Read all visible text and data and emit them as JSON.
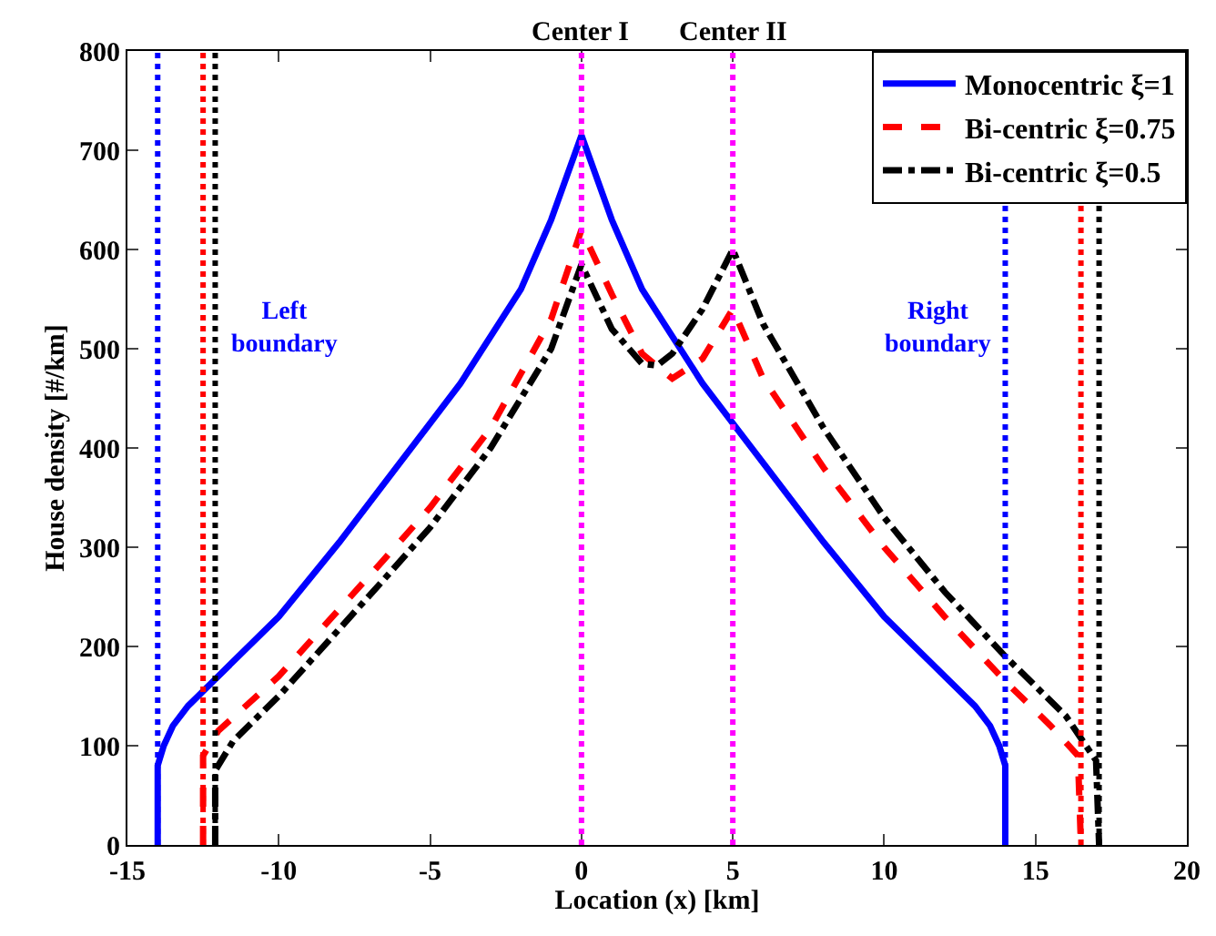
{
  "chart_data": {
    "type": "line",
    "xlabel": "Location (x) [km]",
    "ylabel": "House density [#/km]",
    "xlim": [
      -15,
      20
    ],
    "xticks": [
      -15,
      -10,
      -5,
      0,
      5,
      10,
      15,
      20
    ],
    "ylim": [
      0,
      800
    ],
    "yticks": [
      0,
      100,
      200,
      300,
      400,
      500,
      600,
      700,
      800
    ],
    "legend": "top right",
    "marker": "none",
    "series": [
      {
        "name": "Monocentric ξ=1",
        "color": "#0000ff",
        "line_style": "solid",
        "x": [
          -14,
          -14,
          -13.8,
          -13.5,
          -13,
          -12,
          -10,
          -8,
          -6,
          -5,
          -4,
          -2,
          -1,
          0,
          1,
          2,
          4,
          5,
          6,
          8,
          10,
          12,
          13,
          13.5,
          13.8,
          14,
          14
        ],
        "values": [
          0,
          80,
          100,
          120,
          140,
          170,
          230,
          305,
          385,
          425,
          465,
          560,
          630,
          715,
          630,
          560,
          465,
          425,
          385,
          305,
          230,
          170,
          140,
          120,
          100,
          80,
          0
        ]
      },
      {
        "name": "Bi-centric ξ=0.75",
        "color": "#ff0000",
        "line_style": "dashed",
        "x": [
          -12.5,
          -12.5,
          -12,
          -10,
          -6.6,
          -5,
          -3,
          -1,
          0,
          1,
          2,
          3,
          4,
          5,
          6,
          8,
          10,
          12,
          14,
          15.5,
          16.4,
          16.5
        ],
        "values": [
          0,
          90,
          115,
          170,
          285,
          340,
          420,
          530,
          620,
          555,
          495,
          470,
          490,
          540,
          470,
          380,
          300,
          230,
          165,
          120,
          90,
          0
        ]
      },
      {
        "name": "Bi-centric ξ=0.5",
        "color": "#000000",
        "line_style": "dashdot",
        "x": [
          -12.1,
          -12.1,
          -11.5,
          -10,
          -6.6,
          -5,
          -3,
          -1,
          0,
          1,
          2,
          2.5,
          3,
          4,
          5,
          6,
          8,
          10,
          12,
          14,
          16,
          17,
          17.1
        ],
        "values": [
          0,
          75,
          105,
          150,
          265,
          320,
          400,
          500,
          585,
          520,
          485,
          483,
          495,
          540,
          600,
          525,
          420,
          330,
          255,
          190,
          130,
          85,
          0
        ]
      }
    ],
    "ref_lines": [
      {
        "axis": "x",
        "value": -14,
        "color": "#0000ff",
        "line_style": "dotted"
      },
      {
        "axis": "x",
        "value": -12.5,
        "color": "#ff0000",
        "line_style": "dotted"
      },
      {
        "axis": "x",
        "value": -12.1,
        "color": "#000000",
        "line_style": "dotted"
      },
      {
        "axis": "x",
        "value": 14,
        "color": "#0000ff",
        "line_style": "dotted"
      },
      {
        "axis": "x",
        "value": 16.5,
        "color": "#ff0000",
        "line_style": "dotted"
      },
      {
        "axis": "x",
        "value": 17.1,
        "color": "#000000",
        "line_style": "dotted"
      },
      {
        "axis": "x",
        "value": 0,
        "color": "#ff00ff",
        "line_style": "dotted",
        "label": "Center I"
      },
      {
        "axis": "x",
        "value": 5,
        "color": "#ff00ff",
        "line_style": "dotted",
        "label": "Center II"
      }
    ],
    "annotations": [
      "Left\nboundary",
      "Right\nboundary"
    ]
  }
}
